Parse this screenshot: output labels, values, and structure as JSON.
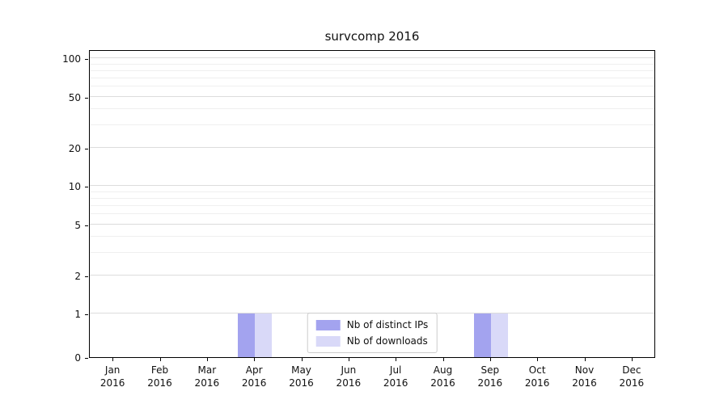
{
  "title": "survcomp 2016",
  "chart_data": {
    "type": "bar",
    "title": "survcomp 2016",
    "categories": [
      "Jan 2016",
      "Feb 2016",
      "Mar 2016",
      "Apr 2016",
      "May 2016",
      "Jun 2016",
      "Jul 2016",
      "Aug 2016",
      "Sep 2016",
      "Oct 2016",
      "Nov 2016",
      "Dec 2016"
    ],
    "series": [
      {
        "name": "Nb of distinct IPs",
        "color": "#a3a3ef",
        "values": [
          0,
          0,
          0,
          1,
          0,
          0,
          0,
          0,
          1,
          0,
          0,
          0
        ]
      },
      {
        "name": "Nb of downloads",
        "color": "#d9d9f8",
        "values": [
          0,
          0,
          0,
          1,
          0,
          0,
          0,
          0,
          1,
          0,
          0,
          0
        ]
      }
    ],
    "xlabel": "",
    "ylabel": "",
    "yscale": "symlog",
    "ylim": [
      0,
      100
    ],
    "yticks": [
      0,
      1,
      2,
      5,
      10,
      20,
      50,
      100
    ],
    "minor_gridlines": [
      3,
      4,
      6,
      7,
      8,
      9,
      30,
      40,
      60,
      70,
      80,
      90
    ],
    "grid": true,
    "legend": {
      "position": "lower center inside",
      "items": [
        "Nb of distinct IPs",
        "Nb of downloads"
      ]
    }
  }
}
